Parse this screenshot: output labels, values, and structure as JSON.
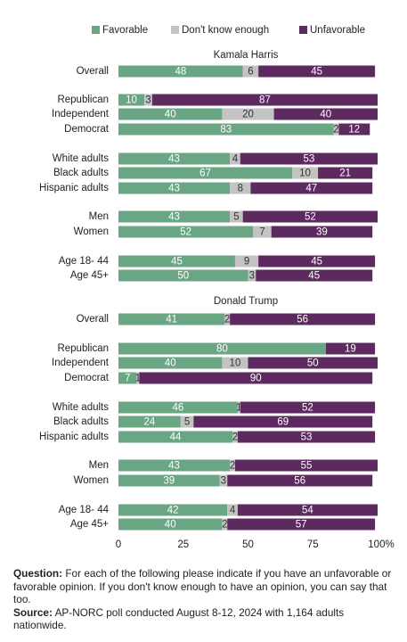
{
  "chart_data": [
    {
      "type": "bar",
      "orientation": "horizontal",
      "stacked": true,
      "title": "Kamala Harris",
      "categories": [
        "Overall",
        "Republican",
        "Independent",
        "Democrat",
        "White adults",
        "Black adults",
        "Hispanic adults",
        "Men",
        "Women",
        "Age 18- 44",
        "Age 45+"
      ],
      "series": [
        {
          "name": "Favorable",
          "color": "#6aa584",
          "values": [
            48,
            10,
            40,
            83,
            43,
            67,
            43,
            43,
            52,
            45,
            50
          ]
        },
        {
          "name": "Don't know enough",
          "color": "#c3c3c3",
          "values": [
            6,
            3,
            20,
            2,
            4,
            10,
            8,
            5,
            7,
            9,
            3
          ]
        },
        {
          "name": "Unfavorable",
          "color": "#5c2a5e",
          "values": [
            45,
            87,
            40,
            12,
            53,
            21,
            47,
            52,
            39,
            45,
            45
          ]
        }
      ]
    },
    {
      "type": "bar",
      "orientation": "horizontal",
      "stacked": true,
      "title": "Donald Trump",
      "categories": [
        "Overall",
        "Republican",
        "Independent",
        "Democrat",
        "White adults",
        "Black adults",
        "Hispanic adults",
        "Men",
        "Women",
        "Age 18- 44",
        "Age 45+"
      ],
      "series": [
        {
          "values": [
            41,
            80,
            40,
            7,
            46,
            24,
            44,
            43,
            39,
            42,
            40
          ]
        },
        {
          "values": [
            2,
            null,
            10,
            1,
            1,
            5,
            2,
            2,
            3,
            4,
            2
          ]
        },
        {
          "values": [
            56,
            19,
            50,
            90,
            52,
            69,
            53,
            55,
            56,
            54,
            57
          ]
        }
      ],
      "xlim": [
        0,
        100
      ],
      "xticks": [
        0,
        25,
        50,
        75,
        {
          "value": 100,
          "label": "100%"
        }
      ]
    }
  ],
  "footer": {
    "question_label": "Question:",
    "question": "For each of the following please indicate if you have an unfavorable or favorable opinion. If you don't know enough to have an opinion, you can say that too.",
    "source_label": "Source:",
    "source": "AP-NORC poll conducted August 8-12, 2024 with 1,164 adults nationwide."
  }
}
